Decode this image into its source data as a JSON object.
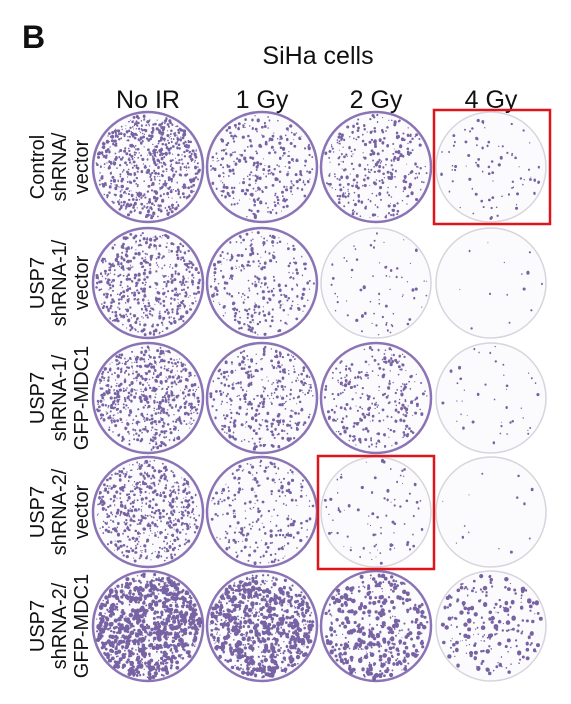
{
  "panel_label": "B",
  "title": "SiHa cells",
  "columns": [
    "No IR",
    "1 Gy",
    "2 Gy",
    "4 Gy"
  ],
  "rows": [
    {
      "lines": [
        "Control",
        "shRNA/",
        "vector"
      ]
    },
    {
      "lines": [
        "USP7",
        "shRNA-1/",
        "vector"
      ]
    },
    {
      "lines": [
        "USP7",
        "shRNA-1/",
        "GFP-MDC1"
      ]
    },
    {
      "lines": [
        "USP7",
        "shRNA-2/",
        "vector"
      ]
    },
    {
      "lines": [
        "USP7",
        "shRNA-2/",
        "GFP-MDC1"
      ]
    }
  ]
}
